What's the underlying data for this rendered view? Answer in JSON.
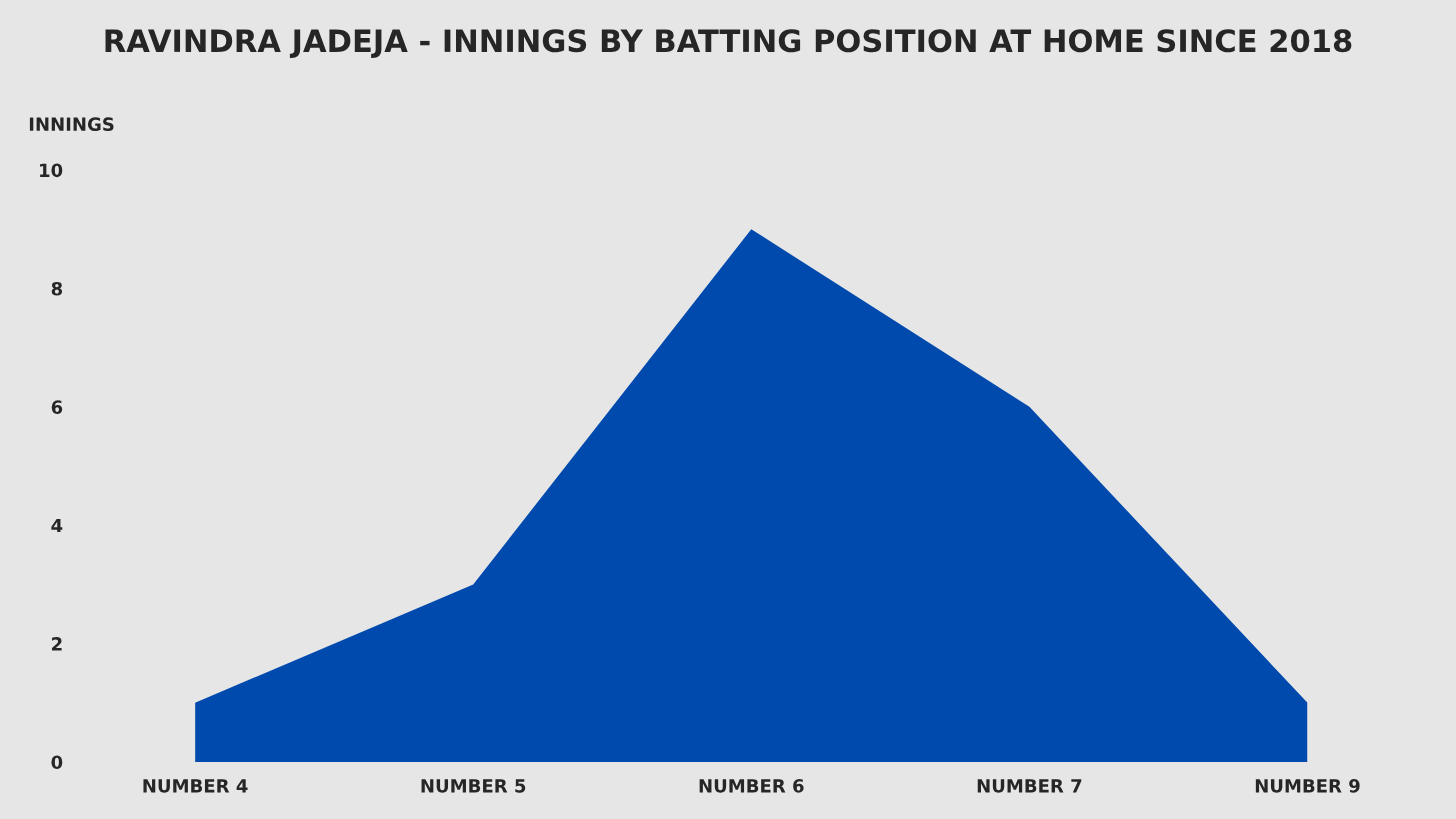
{
  "chart_data": {
    "type": "area",
    "title": "RAVINDRA JADEJA - INNINGS BY BATTING POSITION AT HOME SINCE 2018",
    "ylabel": "INNINGS",
    "categories": [
      "NUMBER 4",
      "NUMBER 5",
      "NUMBER 6",
      "NUMBER 7",
      "NUMBER 9"
    ],
    "series": [
      {
        "color": "#004aad",
        "values": [
          1,
          3,
          9,
          6,
          1
        ]
      }
    ],
    "ylim": [
      0,
      10
    ],
    "yticks": [
      0,
      2,
      4,
      6,
      8,
      10
    ],
    "grid": false,
    "legend": false
  }
}
